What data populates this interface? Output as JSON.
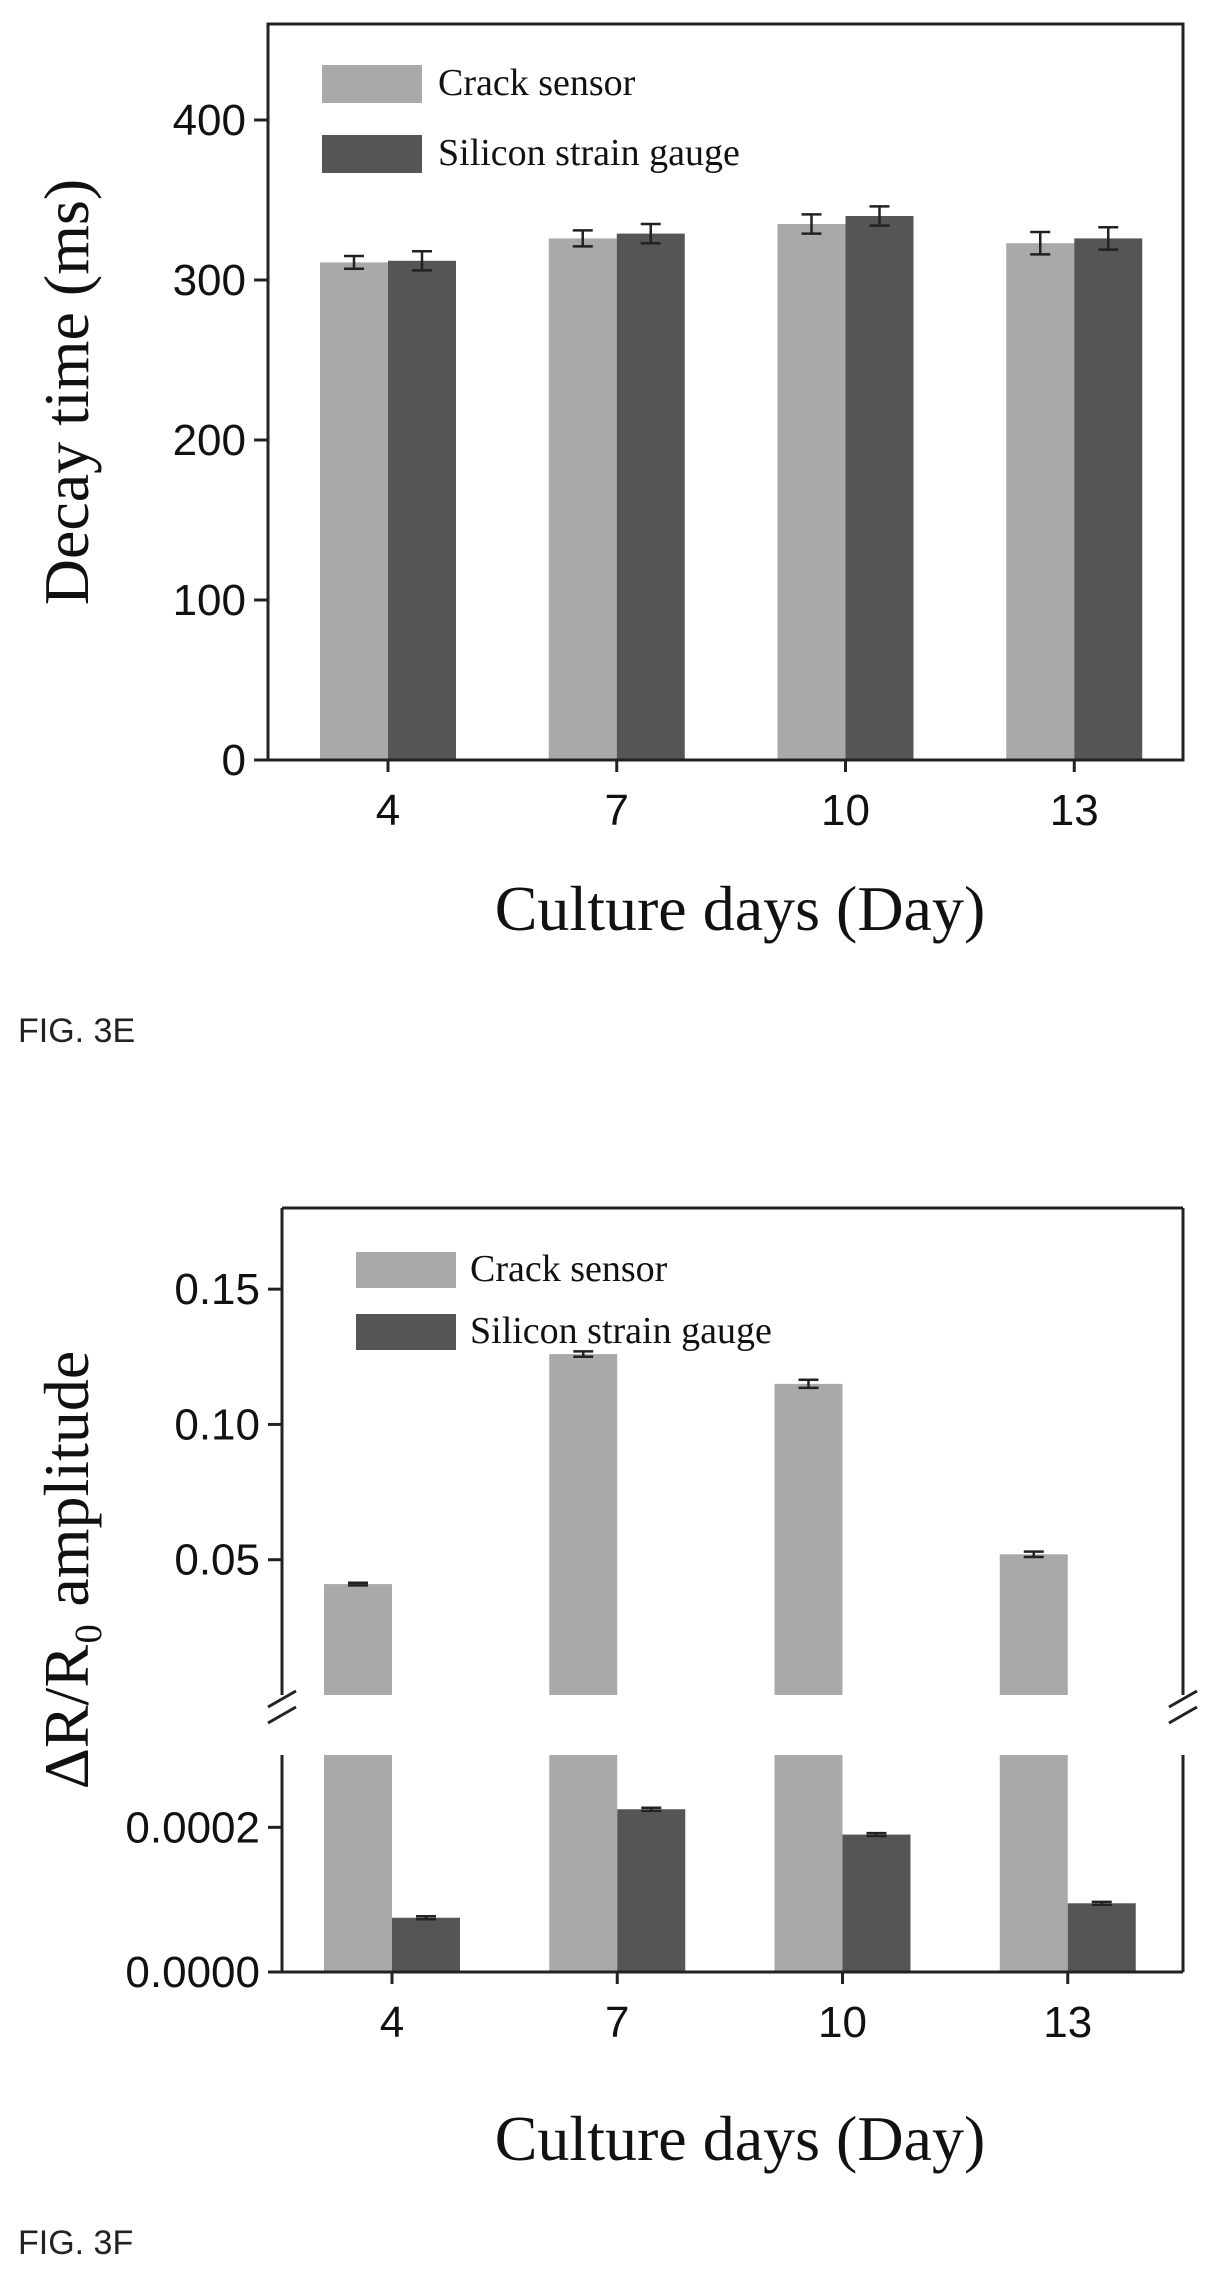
{
  "chart_data": [
    {
      "type": "bar",
      "title": "",
      "figure_label": "FIG. 3E",
      "xlabel": "Culture days (Day)",
      "ylabel": "Decay time (ms)",
      "categories": [
        "4",
        "7",
        "10",
        "13"
      ],
      "ylim": [
        0,
        460
      ],
      "yticks": [
        "0",
        "100",
        "200",
        "300",
        "400"
      ],
      "legend_position": "top-left",
      "grid": false,
      "series": [
        {
          "name": "Crack sensor",
          "color": "#a9a9a9",
          "values": [
            311,
            326,
            335,
            323
          ],
          "errors": [
            4,
            5,
            6,
            7
          ]
        },
        {
          "name": "Silicon strain gauge",
          "color": "#555555",
          "values": [
            312,
            329,
            340,
            326
          ],
          "errors": [
            6,
            6,
            6,
            7
          ]
        }
      ]
    },
    {
      "type": "bar",
      "title": "",
      "figure_label": "FIG. 3F",
      "xlabel": "Culture days (Day)",
      "ylabel": "ΔR/R₀ amplitude",
      "categories": [
        "4",
        "7",
        "10",
        "13"
      ],
      "axis_break": true,
      "lower_segment": {
        "ylim": [
          0,
          0.0003
        ],
        "yticks": [
          "0.0000",
          "0.0002"
        ]
      },
      "upper_segment": {
        "ylim": [
          0,
          0.18
        ],
        "yticks": [
          "0.05",
          "0.10",
          "0.15"
        ]
      },
      "legend_position": "top-left",
      "grid": false,
      "series": [
        {
          "name": "Crack sensor",
          "color": "#a9a9a9",
          "values": [
            0.041,
            0.126,
            0.115,
            0.052
          ],
          "errors": [
            0.0005,
            0.001,
            0.0015,
            0.001
          ]
        },
        {
          "name": "Silicon strain gauge",
          "color": "#555555",
          "values": [
            7.5e-05,
            0.000225,
            0.00019,
            9.5e-05
          ],
          "errors": [
            2e-06,
            2e-06,
            2e-06,
            2e-06
          ]
        }
      ]
    }
  ]
}
